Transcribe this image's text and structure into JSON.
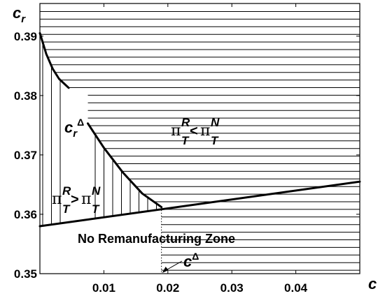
{
  "chart_data": {
    "type": "area",
    "title": "",
    "xlabel": "c",
    "ylabel": "c",
    "ylabel_sub": "r",
    "xlim": [
      0.0,
      0.05
    ],
    "ylim": [
      0.35,
      0.3955
    ],
    "x_ticks": [
      0.01,
      0.02,
      0.03,
      0.04
    ],
    "x_tick_labels": [
      "0.01",
      "0.02",
      "0.03",
      "0.04"
    ],
    "y_ticks": [
      0.35,
      0.36,
      0.37,
      0.38,
      0.39
    ],
    "y_tick_labels": [
      "0.35",
      "0.36",
      "0.37",
      "0.38",
      "0.39"
    ],
    "grid": false,
    "series": [
      {
        "role": "lower-boundary",
        "x": [
          0.0,
          0.05
        ],
        "y": [
          0.358,
          0.3655
        ]
      },
      {
        "role": "upper-curve-segment",
        "x": [
          0.0,
          0.001,
          0.002,
          0.003,
          0.0045
        ],
        "y": [
          0.3905,
          0.387,
          0.3845,
          0.3828,
          0.3813
        ]
      },
      {
        "role": "lower-curve-segment",
        "x": [
          0.0075,
          0.01,
          0.013,
          0.016,
          0.019
        ],
        "y": [
          0.3753,
          0.3712,
          0.367,
          0.3635,
          0.3612
        ]
      }
    ],
    "point_markers": [
      {
        "label": "c",
        "label_sup": "Δ",
        "x": 0.019,
        "y": 0.35
      }
    ],
    "annotations": [
      {
        "label": "c",
        "label_sub": "r",
        "label_sup": "Δ",
        "x": 0.0065,
        "y": 0.3768
      }
    ],
    "regions": [
      {
        "pattern": "horizontal-hatch",
        "label": {
          "symbol": "π",
          "sup1": "R",
          "sub1": "T",
          "op": "<",
          "sup2": "N",
          "sub2": "T"
        }
      },
      {
        "pattern": "vertical-hatch",
        "label": {
          "symbol": "π",
          "sup1": "R",
          "sub1": "T",
          "op": ">",
          "sup2": "N",
          "sub2": "T"
        }
      },
      {
        "pattern": "none",
        "label": {
          "text": "No Remanufacturing Zone"
        }
      }
    ]
  }
}
